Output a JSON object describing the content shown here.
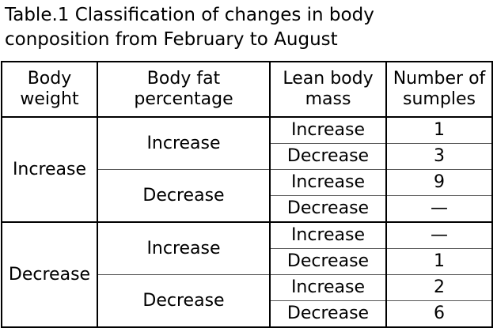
{
  "caption": "Table.1 Classification of changes in body\nconposition from February to August",
  "headers": {
    "body_weight": "Body\nweight",
    "body_fat": "Body fat\npercentage",
    "lean_mass": "Lean body\nmass",
    "number": "Number of\nsumples"
  },
  "groups": [
    {
      "body_weight": "Increase",
      "fat": [
        {
          "label": "Increase",
          "rows": [
            {
              "lean": "Increase",
              "count": "1"
            },
            {
              "lean": "Decrease",
              "count": "3"
            }
          ]
        },
        {
          "label": "Decrease",
          "rows": [
            {
              "lean": "Increase",
              "count": "9"
            },
            {
              "lean": "Decrease",
              "count": "—"
            }
          ]
        }
      ]
    },
    {
      "body_weight": "Decrease",
      "fat": [
        {
          "label": "Increase",
          "rows": [
            {
              "lean": "Increase",
              "count": "—"
            },
            {
              "lean": "Decrease",
              "count": "1"
            }
          ]
        },
        {
          "label": "Decrease",
          "rows": [
            {
              "lean": "Increase",
              "count": "2"
            },
            {
              "lean": "Decrease",
              "count": "6"
            }
          ]
        }
      ]
    }
  ]
}
